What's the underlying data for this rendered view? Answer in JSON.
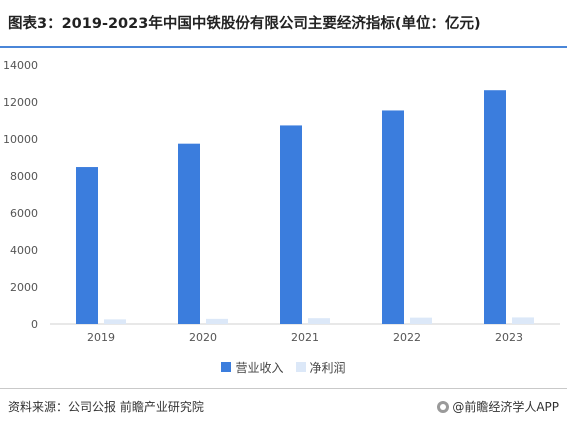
{
  "header": {
    "title": "图表3：2019-2023年中国中铁股份有限公司主要经济指标(单位：亿元)"
  },
  "footer": {
    "source": "资料来源：公司公报 前瞻产业研究院",
    "brand": "@前瞻经济学人APP"
  },
  "colors": {
    "revenue": "#3b7ddd",
    "profit": "#dce8f8",
    "axis_text": "#555555"
  },
  "chart_data": {
    "type": "bar",
    "categories": [
      "2019",
      "2020",
      "2021",
      "2022",
      "2023"
    ],
    "series": [
      {
        "name": "营业收入",
        "values": [
          8484,
          9747,
          10734,
          11543,
          12637
        ]
      },
      {
        "name": "净利润",
        "values": [
          252,
          279,
          315,
          343,
          356
        ]
      }
    ],
    "ylim": [
      0,
      14000
    ],
    "yticks": [
      "0",
      "2000",
      "4000",
      "6000",
      "8000",
      "10000",
      "12000",
      "14000"
    ],
    "legend_position": "bottom-center",
    "grid": false
  }
}
